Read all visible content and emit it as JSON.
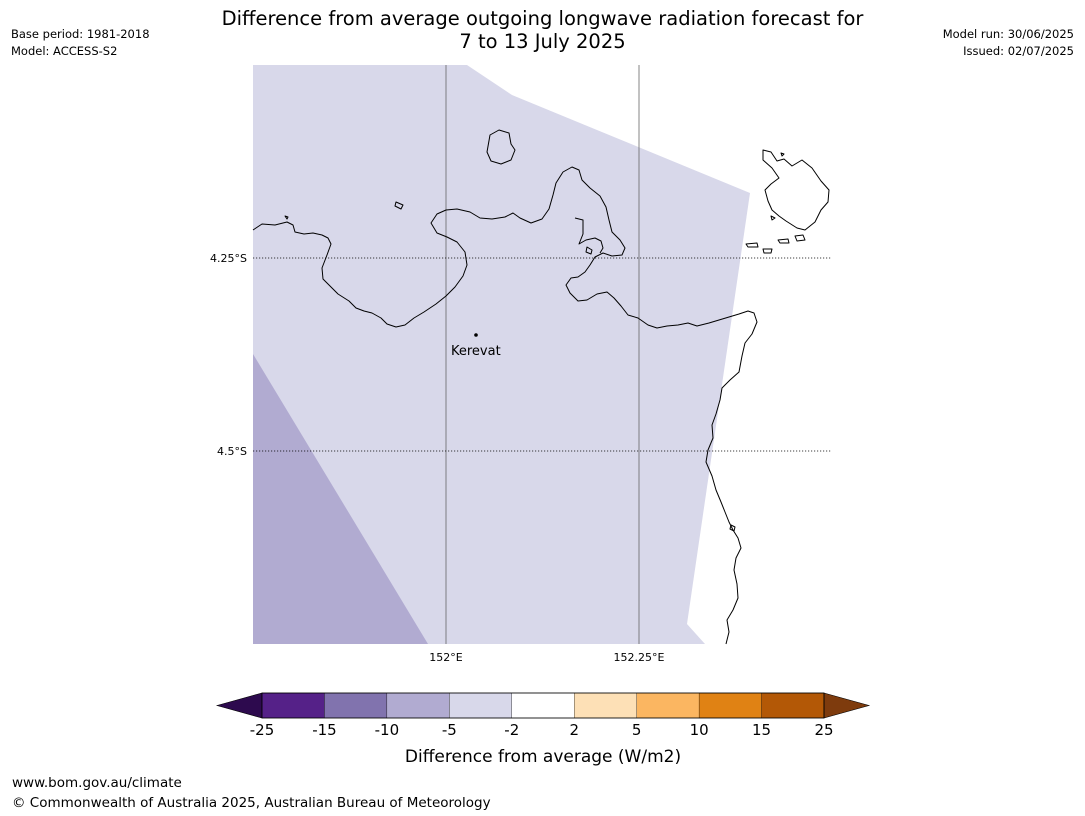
{
  "header": {
    "base_period": "Base period: 1981-2018",
    "model": "Model: ACCESS-S2",
    "model_run": "Model run: 30/06/2025",
    "issued": "Issued: 02/07/2025"
  },
  "title": {
    "line1": "Difference from average outgoing longwave radiation forecast for",
    "line2": "7 to 13 July 2025"
  },
  "map": {
    "lat_labels": [
      "4.25°S",
      "4.5°S"
    ],
    "lon_labels": [
      "152°E",
      "152.25°E"
    ],
    "place": {
      "name": "Kerevat"
    },
    "regions": [
      {
        "category": "-5 to -2",
        "color": "#d8d8ea"
      },
      {
        "category": "-10 to -5",
        "color": "#b1abd1"
      }
    ]
  },
  "colorbar": {
    "label": "Difference from average (W/m2)",
    "ticks": [
      "-25",
      "-15",
      "-10",
      "-5",
      "-2",
      "2",
      "5",
      "10",
      "15",
      "25"
    ],
    "under_color": "#2d0a4e",
    "over_color": "#7e3b0d",
    "bins": [
      {
        "from": -25,
        "to": -15,
        "color": "#552188"
      },
      {
        "from": -15,
        "to": -10,
        "color": "#8173ae"
      },
      {
        "from": -10,
        "to": -5,
        "color": "#b1abd1"
      },
      {
        "from": -5,
        "to": -2,
        "color": "#d8d8ea"
      },
      {
        "from": -2,
        "to": 2,
        "color": "#ffffff"
      },
      {
        "from": 2,
        "to": 5,
        "color": "#fde0b6"
      },
      {
        "from": 5,
        "to": 10,
        "color": "#fbb661"
      },
      {
        "from": 10,
        "to": 15,
        "color": "#e08214"
      },
      {
        "from": 15,
        "to": 25,
        "color": "#b35806"
      }
    ]
  },
  "footer": {
    "url": "www.bom.gov.au/climate",
    "copyright": "© Commonwealth of Australia 2025, Australian Bureau of Meteorology"
  }
}
